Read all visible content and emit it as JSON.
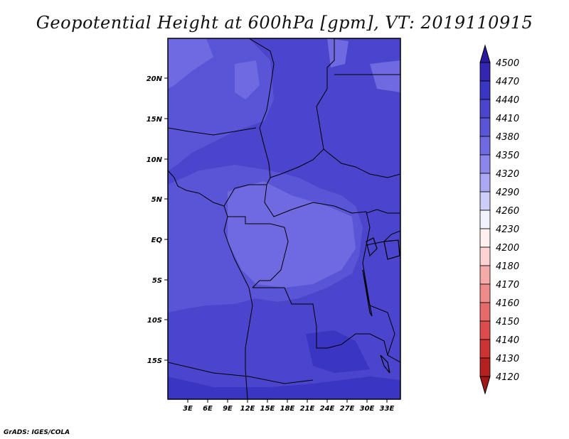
{
  "title": "Geopotential Height at 600hPa [gpm], VT: 2019110915",
  "footer": "GrADS: IGES/COLA",
  "map": {
    "lat_ticks": [
      "20N",
      "15N",
      "10N",
      "5N",
      "EQ",
      "5S",
      "10S",
      "15S"
    ],
    "lon_ticks": [
      "3E",
      "6E",
      "9E",
      "12E",
      "15E",
      "18E",
      "21E",
      "24E",
      "27E",
      "30E",
      "33E"
    ]
  },
  "colorbar": {
    "levels": [
      "4500",
      "4470",
      "4440",
      "4410",
      "4380",
      "4350",
      "4320",
      "4290",
      "4260",
      "4230",
      "4200",
      "4180",
      "4170",
      "4160",
      "4150",
      "4140",
      "4130",
      "4120"
    ],
    "colors": [
      "#2a1aa0",
      "#3326b0",
      "#3a35c2",
      "#4a45cc",
      "#5a55d6",
      "#6f6ae0",
      "#8a86ea",
      "#aaa8f2",
      "#cdcdf8",
      "#f2f2ff",
      "#fff0f0",
      "#fcd2d2",
      "#f5aaaa",
      "#ee8a8a",
      "#e66a6a",
      "#dd4c4c",
      "#cc3333",
      "#b62020",
      "#a01818"
    ]
  }
}
